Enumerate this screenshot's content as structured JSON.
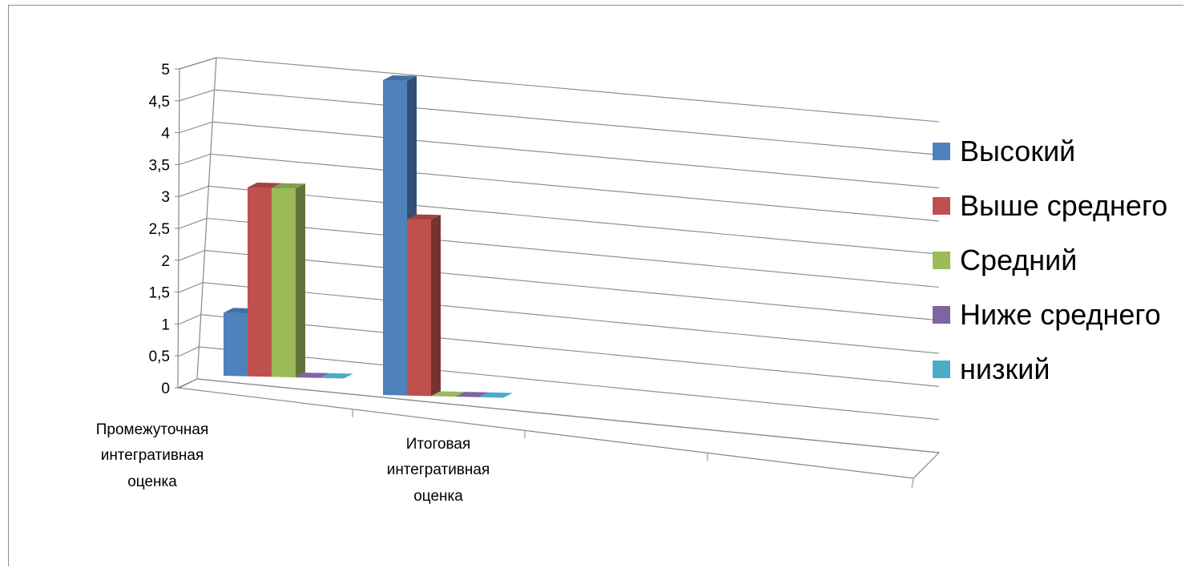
{
  "chart_data": {
    "type": "bar",
    "categories": [
      "Промежуточная интегративная оценка",
      "Итоговая интегративная оценка"
    ],
    "category_lines": [
      [
        "Промежуточная",
        "интегративная",
        "оценка"
      ],
      [
        "Итоговая",
        "интегративная",
        "оценка"
      ]
    ],
    "series": [
      {
        "name": "Высокий",
        "color": "#4F81BD",
        "values": [
          1,
          5
        ]
      },
      {
        "name": "Выше среднего",
        "color": "#C0504D",
        "values": [
          3,
          2.8
        ]
      },
      {
        "name": "Средний",
        "color": "#9BBB59",
        "values": [
          3,
          0
        ]
      },
      {
        "name": "Ниже среднего",
        "color": "#8064A2",
        "values": [
          0,
          0
        ]
      },
      {
        "name": "низкий",
        "color": "#4BACC6",
        "values": [
          0,
          0
        ]
      }
    ],
    "y_ticks": [
      "0",
      "0,5",
      "1",
      "1,5",
      "2",
      "2,5",
      "3",
      "3,5",
      "4",
      "4,5",
      "5"
    ],
    "ylim": [
      0,
      5
    ],
    "grid": true,
    "legend_position": "right",
    "chart_style": "3d-clustered-column"
  }
}
